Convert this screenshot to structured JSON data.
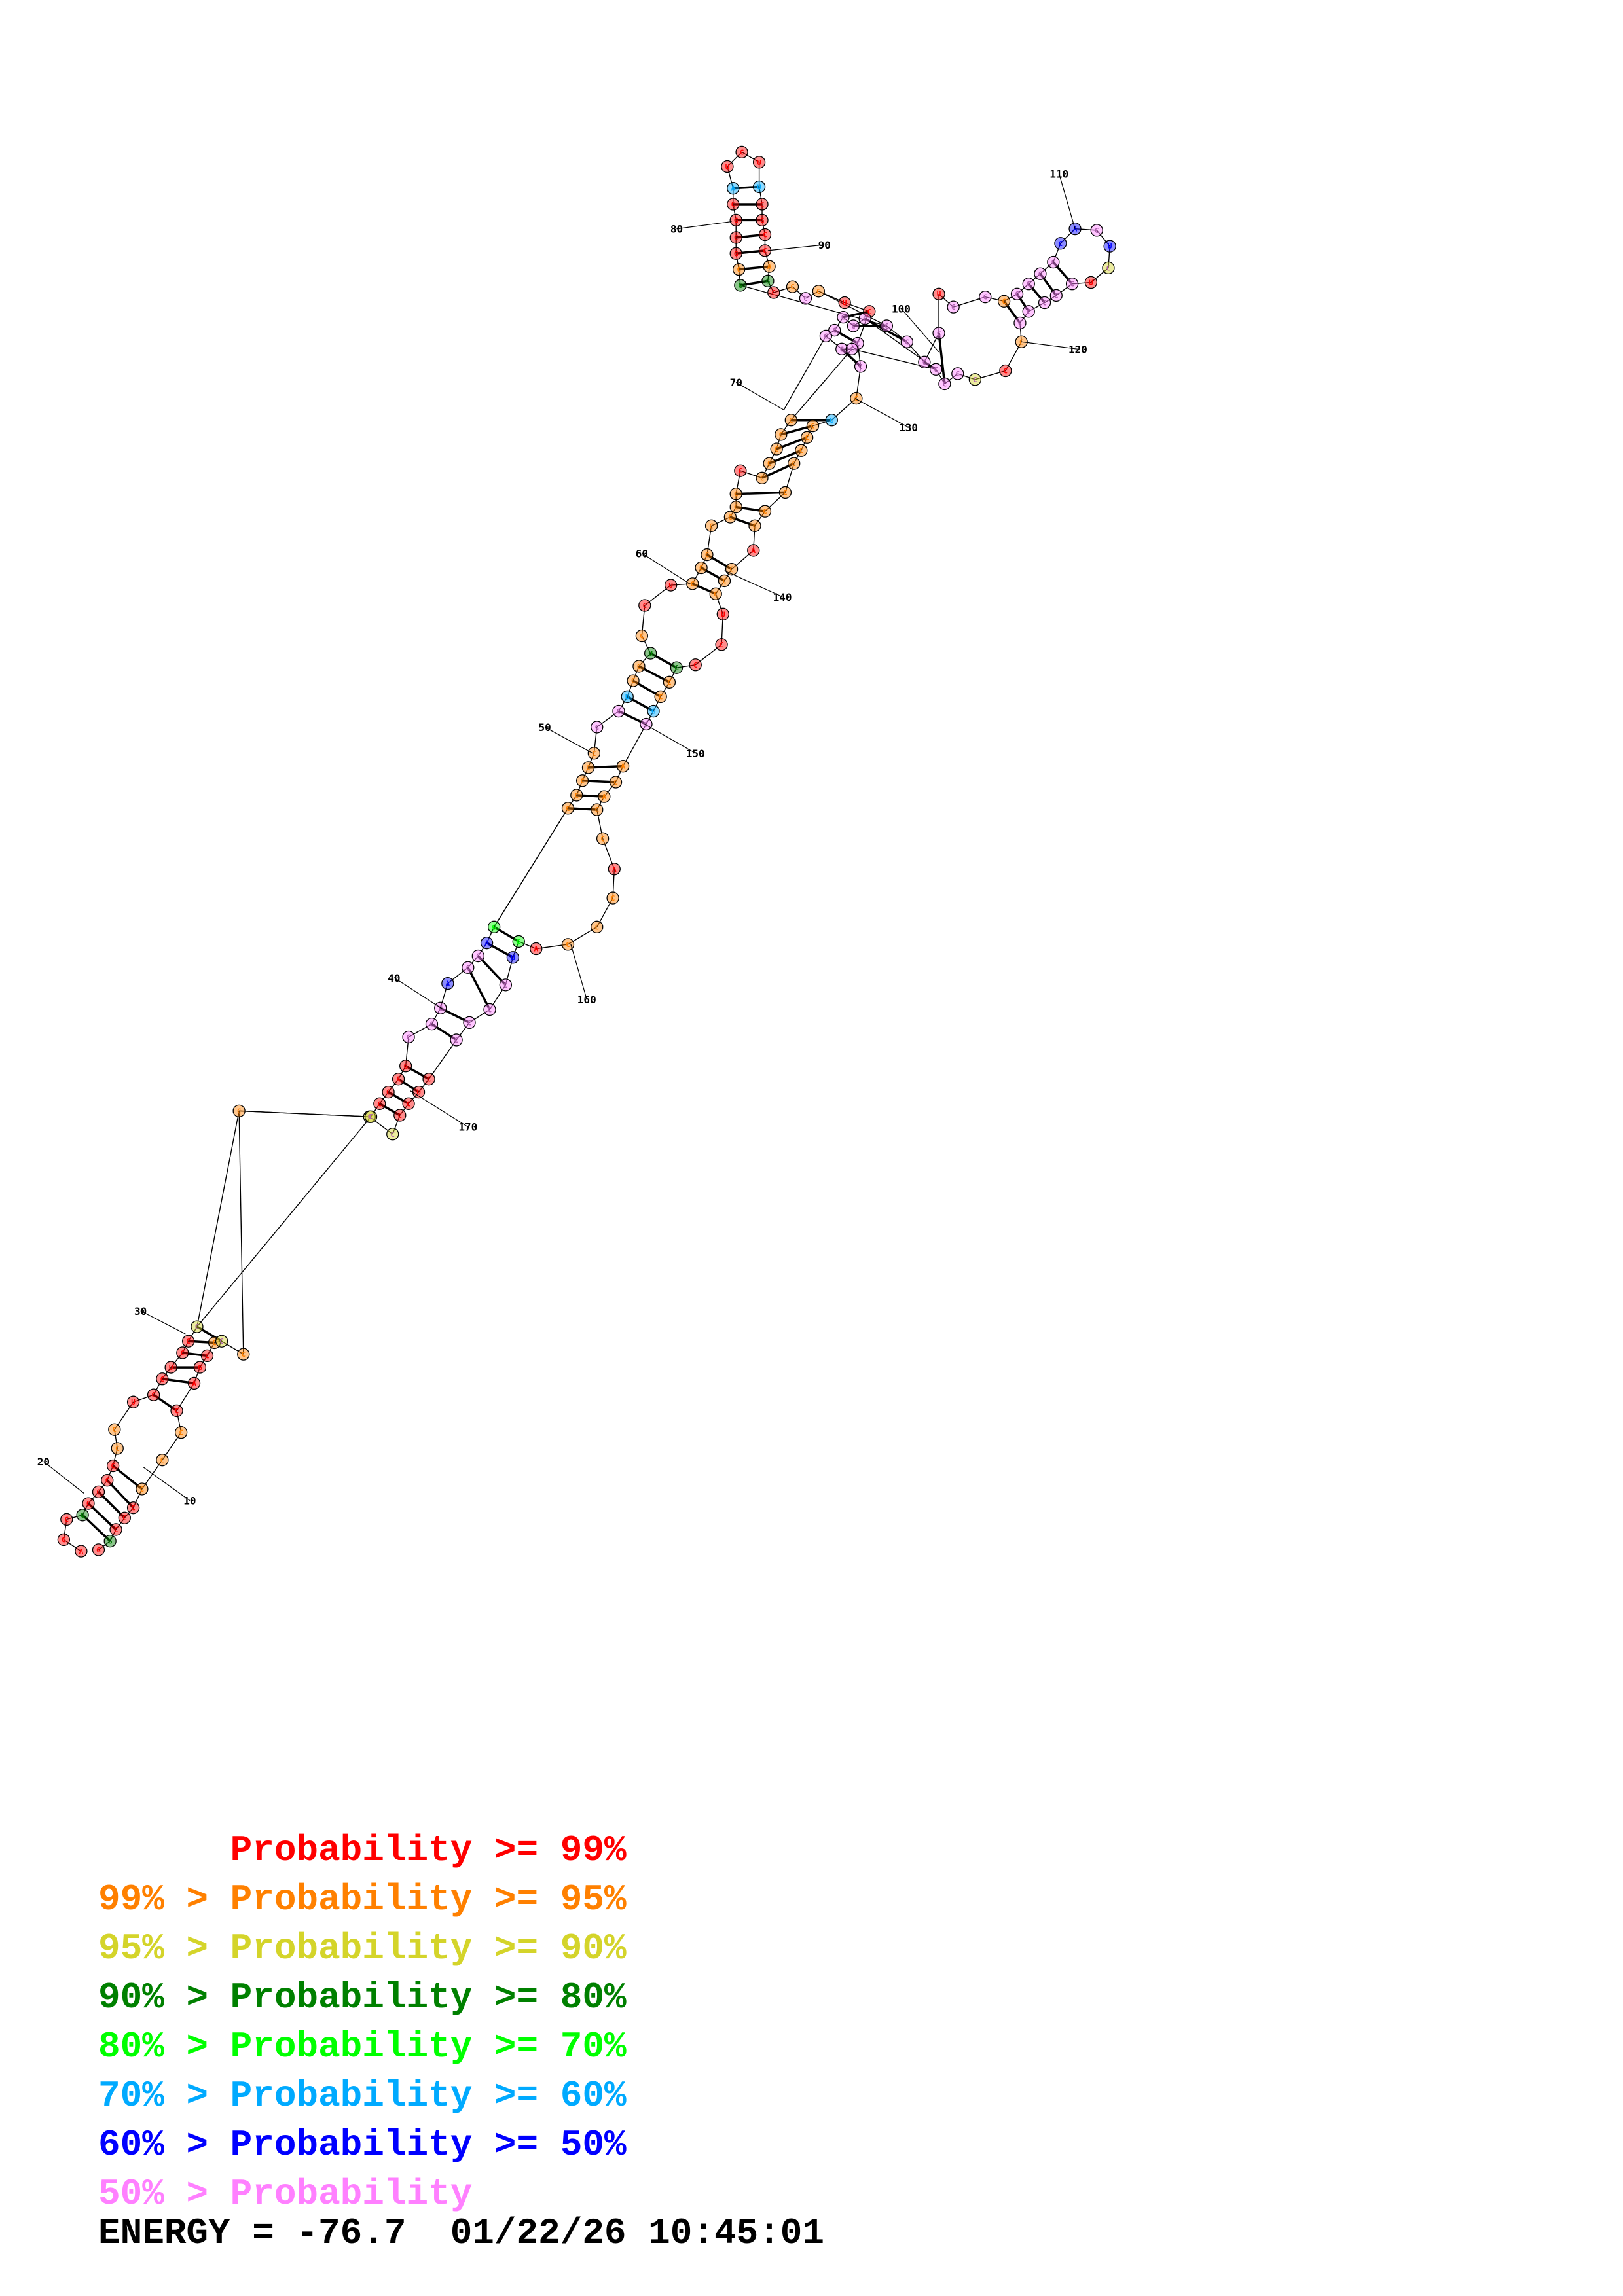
{
  "colors": {
    "p99": "#ff0000",
    "p95": "#ff8000",
    "p90": "#d4d42a",
    "p80": "#008000",
    "p70": "#00ff00",
    "p60": "#00aaff",
    "p50": "#0000ff",
    "plow": "#ff80ff"
  },
  "legend": [
    {
      "lo": "",
      "gt": "",
      "text": "Probability >= 99%",
      "color": "#ff0000"
    },
    {
      "lo": "99%",
      "gt": ">",
      "text": "Probability >= 95%",
      "color": "#ff8000"
    },
    {
      "lo": "95%",
      "gt": ">",
      "text": "Probability >= 90%",
      "color": "#d4d42a"
    },
    {
      "lo": "90%",
      "gt": ">",
      "text": "Probability >= 80%",
      "color": "#008000"
    },
    {
      "lo": "80%",
      "gt": ">",
      "text": "Probability >= 70%",
      "color": "#00ff00"
    },
    {
      "lo": "70%",
      "gt": ">",
      "text": "Probability >= 60%",
      "color": "#00aaff"
    },
    {
      "lo": "60%",
      "gt": ">",
      "text": "Probability >= 50%",
      "color": "#0000ff"
    },
    {
      "lo": "50%",
      "gt": ">",
      "text": "Probability",
      "color": "#ff80ff"
    }
  ],
  "energy_line": "ENERGY = -76.7  01/22/26 10:45:01",
  "position_labels": [
    "10",
    "20",
    "30",
    "40",
    "50",
    "60",
    "70",
    "80",
    "90",
    "100",
    "110",
    "120",
    "130",
    "140",
    "150",
    "160",
    "170"
  ]
}
